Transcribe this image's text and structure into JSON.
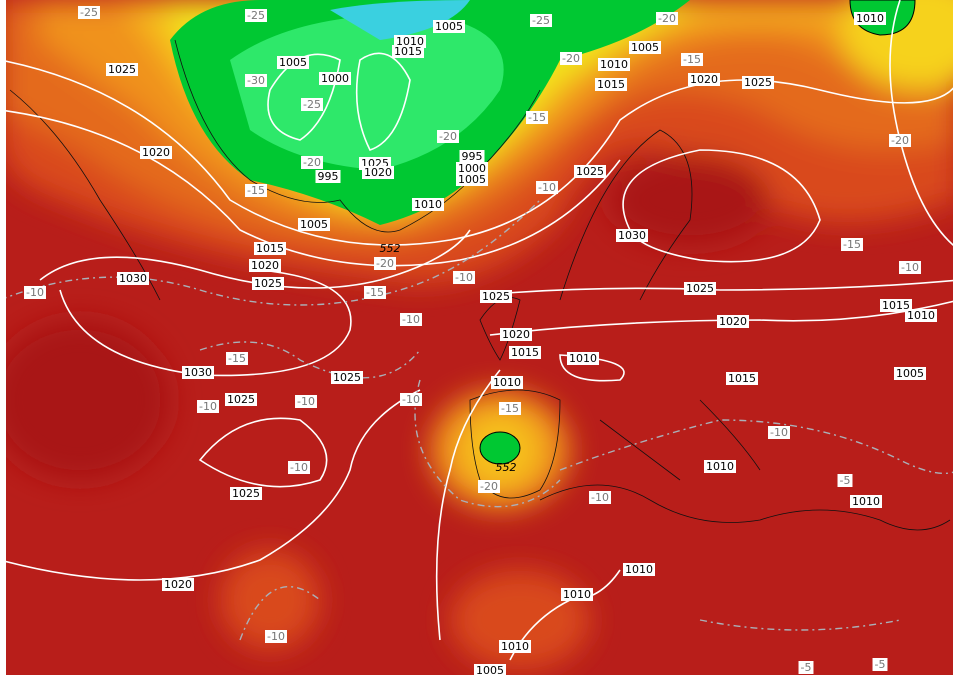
{
  "isobar_labels": [
    "1005",
    "1005",
    "1010",
    "1015",
    "1000",
    "1025",
    "1020",
    "1010",
    "1005",
    "1010",
    "1015",
    "1020",
    "1025",
    "995",
    "1000",
    "1005",
    "1025",
    "1020",
    "995",
    "1010",
    "1005",
    "1015",
    "1020",
    "1025",
    "1030",
    "1025",
    "1030",
    "1025",
    "1025",
    "1020",
    "1015",
    "1020",
    "1015",
    "1010",
    "1010",
    "1015",
    "1005",
    "1010",
    "1030",
    "1025",
    "1025",
    "1025",
    "1010",
    "1010",
    "1020",
    "1010",
    "1010",
    "1010",
    "1005"
  ],
  "temperature_labels": [
    "-25",
    "-25",
    "-25",
    "-20",
    "-30",
    "-25",
    "-20",
    "-15",
    "-15",
    "-20",
    "-20",
    "-15",
    "-10",
    "-20",
    "-15",
    "-10",
    "-10",
    "-20",
    "-15",
    "-10",
    "-10",
    "-15",
    "-10",
    "-10",
    "-10",
    "-15",
    "-10",
    "-20",
    "-10",
    "-10",
    "-5",
    "-10",
    "-5",
    "-5"
  ],
  "height_labels": [
    "552",
    "552"
  ]
}
